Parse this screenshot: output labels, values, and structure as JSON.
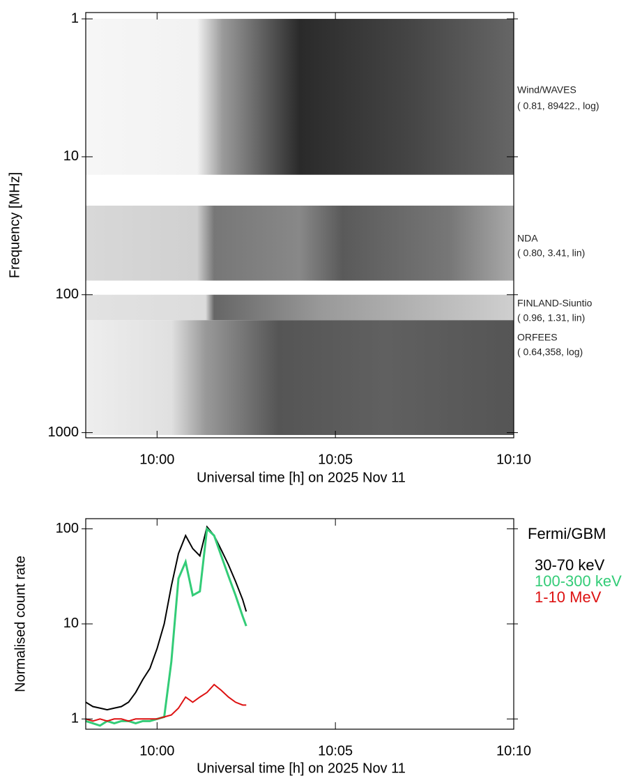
{
  "chart_data": [
    {
      "type": "heatmap",
      "x_label": "Universal time [h] on 2025 Nov 11",
      "y_label": "Frequency [MHz]",
      "xlim": [
        598,
        610
      ],
      "xticks": [
        {
          "value": 600,
          "label": "10:00"
        },
        {
          "value": 605,
          "label": "10:05"
        },
        {
          "value": 610,
          "label": "10:10"
        }
      ],
      "ylim": [
        0.9,
        1090
      ],
      "y_log": true,
      "y_inverted": true,
      "yticks": [
        1,
        10,
        100,
        1000
      ],
      "bands": [
        {
          "name": "Wind/WAVES",
          "params": "( 0.81, 89422., log)",
          "freq": [
            1,
            13.5
          ]
        },
        {
          "name": "NDA",
          "params": "( 0.80, 3.41, lin)",
          "freq": [
            22.6,
            79
          ]
        },
        {
          "name": "FINLAND-Siuntio",
          "params": "( 0.96, 1.31, lin)",
          "freq": [
            100,
            153
          ]
        },
        {
          "name": "ORFEES",
          "params": "( 0.64,358, log)",
          "freq": [
            153,
            1040
          ]
        }
      ]
    },
    {
      "type": "line",
      "x_label": "Universal time [h] on 2025 Nov 11",
      "y_label": "Normalised count rate",
      "legend_title": "Fermi/GBM",
      "legend": "right",
      "xlim": [
        598,
        610
      ],
      "xticks": [
        {
          "value": 600,
          "label": "10:00"
        },
        {
          "value": 605,
          "label": "10:05"
        },
        {
          "value": 610,
          "label": "10:10"
        }
      ],
      "ylim": [
        0.78,
        128
      ],
      "y_log": true,
      "yticks": [
        1,
        10,
        100
      ],
      "x": [
        598.0,
        598.2,
        598.4,
        598.6,
        598.8,
        599.0,
        599.2,
        599.4,
        599.6,
        599.8,
        600.0,
        600.2,
        600.4,
        600.6,
        600.8,
        601.0,
        601.2,
        601.4,
        601.6,
        601.8,
        602.0,
        602.2,
        602.4,
        602.5
      ],
      "series": [
        {
          "name": "30-70 keV",
          "color": "#000000",
          "values": [
            1.5,
            1.35,
            1.3,
            1.25,
            1.3,
            1.35,
            1.5,
            1.9,
            2.6,
            3.4,
            5.5,
            10,
            25,
            55,
            85,
            62,
            52,
            105,
            85,
            60,
            42,
            28,
            18,
            13.5
          ]
        },
        {
          "name": "100-300 keV",
          "color": "#33cc77",
          "values": [
            0.95,
            0.9,
            0.85,
            0.95,
            0.9,
            0.95,
            0.95,
            0.9,
            0.95,
            0.95,
            1.0,
            1.05,
            4,
            30,
            45,
            20,
            22,
            100,
            85,
            52,
            32,
            20,
            12,
            9.5
          ]
        },
        {
          "name": "1-10 MeV",
          "color": "#dd1111",
          "values": [
            1.0,
            0.95,
            1.0,
            0.95,
            1.0,
            1.0,
            0.95,
            1.0,
            1.0,
            1.0,
            1.0,
            1.05,
            1.1,
            1.3,
            1.7,
            1.5,
            1.7,
            1.9,
            2.3,
            2.0,
            1.7,
            1.5,
            1.4,
            1.4
          ]
        }
      ]
    }
  ]
}
